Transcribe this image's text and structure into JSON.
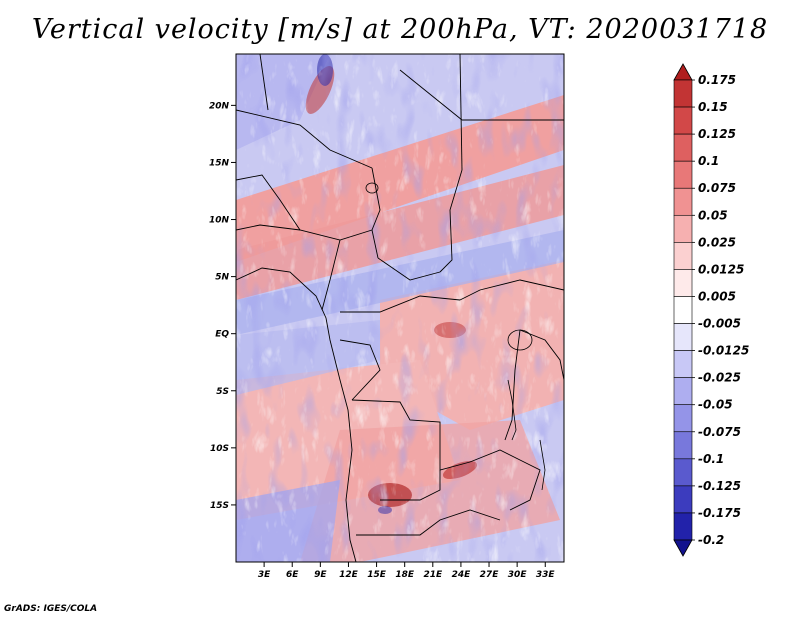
{
  "title": "Vertical velocity [m/s] at 200hPa, VT: 2020031718",
  "footer": "GrADS: IGES/COLA",
  "map": {
    "variable": "Vertical velocity",
    "units": "m/s",
    "level": "200hPa",
    "valid_time": "2020031718",
    "lon_range": [
      0,
      35
    ],
    "lat_range": [
      -20,
      24.5
    ],
    "lat_labels": [
      "20N",
      "15N",
      "10N",
      "5N",
      "EQ",
      "5S",
      "10S",
      "15S"
    ],
    "lat_values": [
      20,
      15,
      10,
      5,
      0,
      -5,
      -10,
      -15
    ],
    "lon_labels": [
      "3E",
      "6E",
      "9E",
      "12E",
      "15E",
      "18E",
      "21E",
      "24E",
      "27E",
      "30E",
      "33E"
    ],
    "lon_values": [
      3,
      6,
      9,
      12,
      15,
      18,
      21,
      24,
      27,
      30,
      33
    ]
  },
  "colorbar": {
    "labels": [
      "0.175",
      "0.15",
      "0.125",
      "0.1",
      "0.075",
      "0.05",
      "0.025",
      "0.0125",
      "0.005",
      "-0.005",
      "-0.0125",
      "-0.025",
      "-0.05",
      "-0.075",
      "-0.1",
      "-0.125",
      "-0.175",
      "-0.2"
    ],
    "colors": [
      "#b01e1e",
      "#c23434",
      "#d24848",
      "#de6060",
      "#e87878",
      "#f09292",
      "#f6b0b0",
      "#fbd0d0",
      "#feeaea",
      "#ffffff",
      "#e6e6fb",
      "#c8c8f6",
      "#aeaef0",
      "#9494e8",
      "#7878dc",
      "#5a5ace",
      "#3c3cbe",
      "#2222aa",
      "#12128e"
    ]
  }
}
